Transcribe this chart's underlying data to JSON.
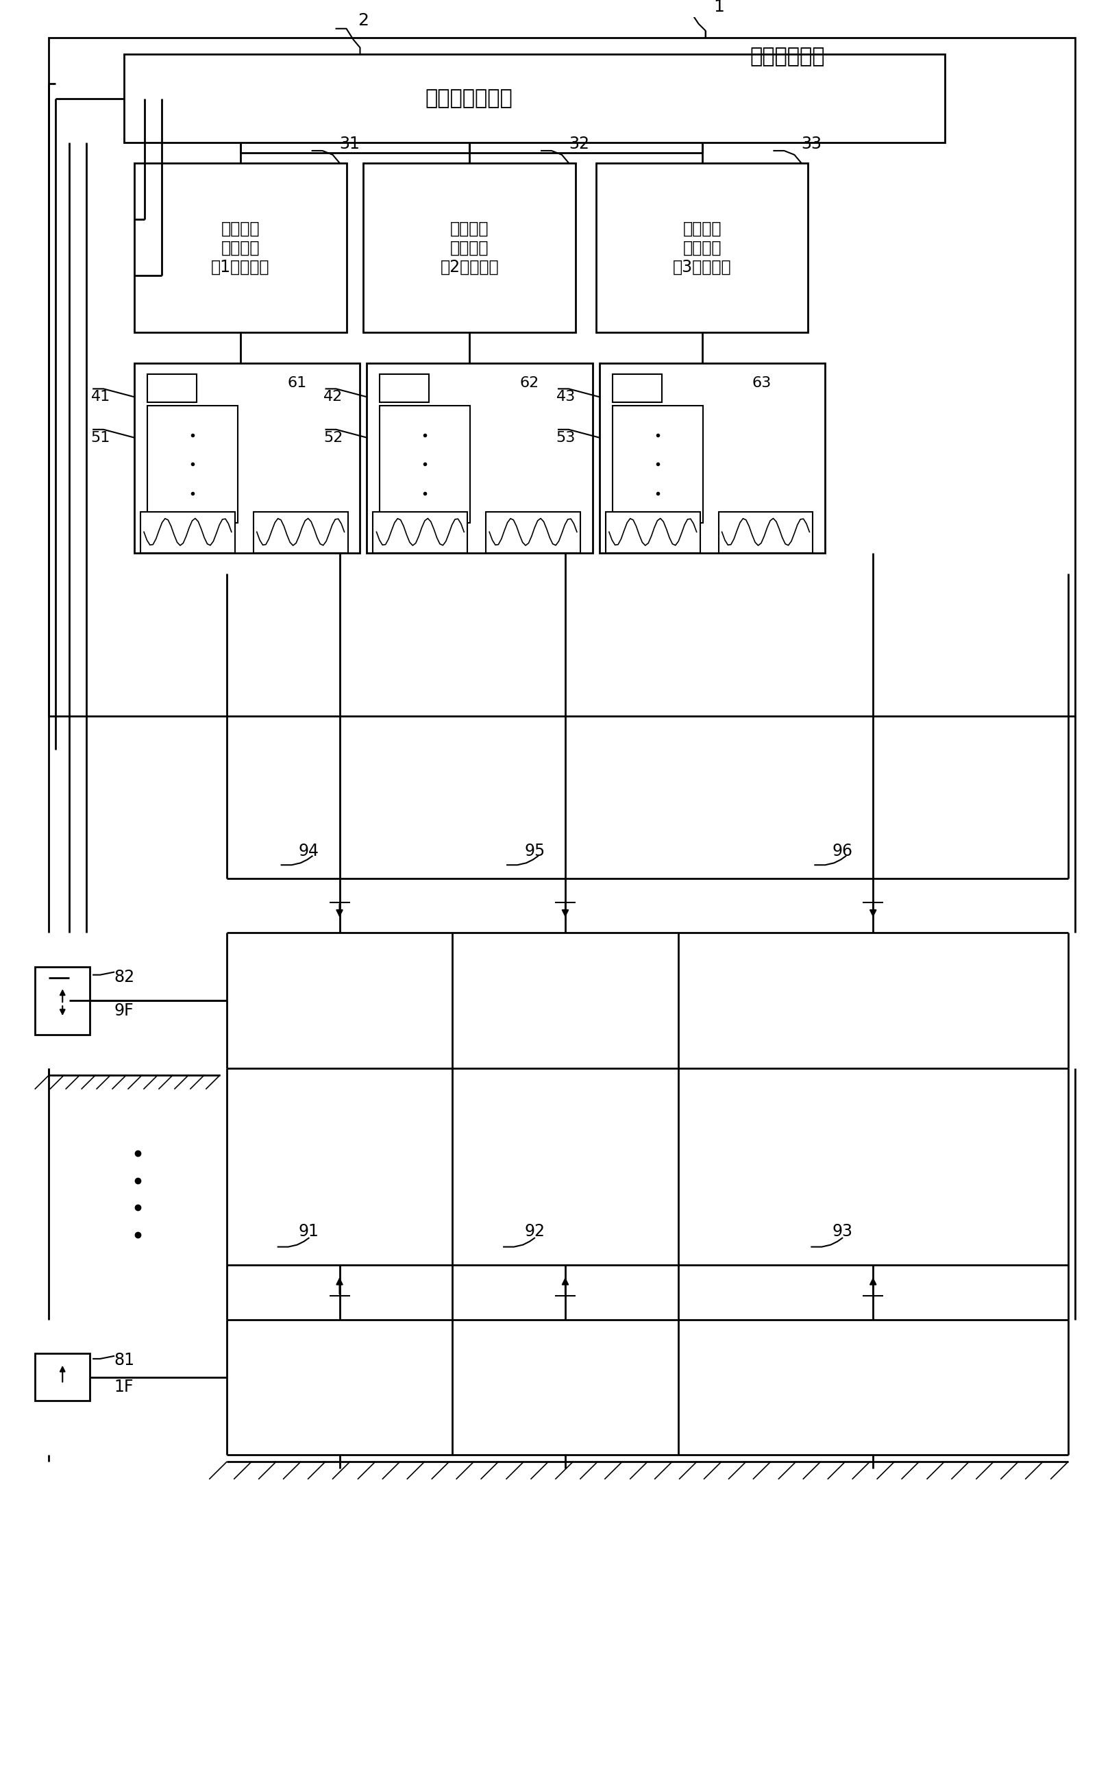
{
  "bg_color": "#ffffff",
  "line_color": "#000000",
  "fig_width": 16.2,
  "fig_height": 26.02,
  "title_label1": "电梯控制装置",
  "label_1": "1",
  "label_2": "2",
  "label_31": "31",
  "label_32": "32",
  "label_33": "33",
  "label_41": "41",
  "label_42": "42",
  "label_43": "43",
  "label_51": "51",
  "label_52": "52",
  "label_53": "53",
  "label_61": "61",
  "label_62": "62",
  "label_63": "63",
  "label_81": "81",
  "label_82": "82",
  "label_91": "91",
  "label_92": "92",
  "label_93": "93",
  "label_94": "94",
  "label_95": "95",
  "label_96": "96",
  "label_1F": "1F",
  "label_9F": "9F",
  "group_ctrl": "群管理控制装置",
  "elevator1": "单体电梯\n控制装置\n（1号电梯）",
  "elevator2": "单体电梯\n控制装置\n（2号电梯）",
  "elevator3": "单体电梯\n控制装置\n（3号电梯）"
}
